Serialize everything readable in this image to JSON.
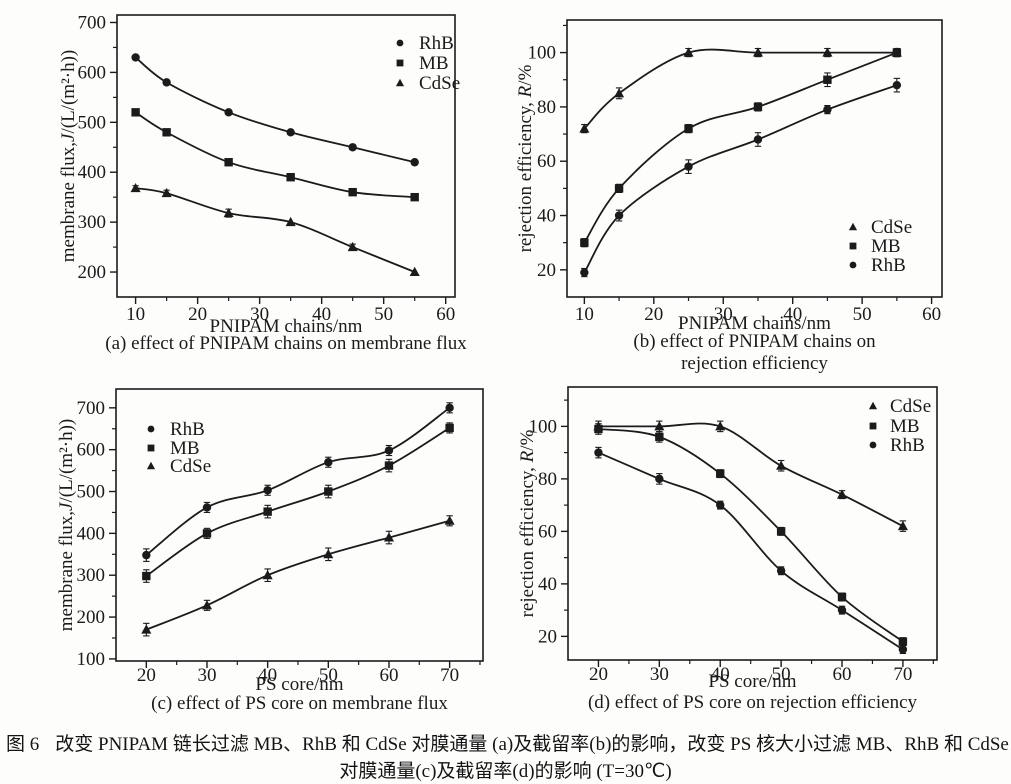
{
  "figure": {
    "caption_label": "图 6",
    "caption_line1": "改变 PNIPAM 链长过滤 MB、RhB 和 CdSe 对膜通量 (a)及截留率(b)的影响，改变 PS 核大小过滤 MB、RhB 和 CdSe",
    "caption_line2": "对膜通量(c)及截留率(d)的影响 (T=30℃)"
  },
  "colors": {
    "ink": "#1b1b1b",
    "background": "#fdfdfc"
  },
  "chart_data": [
    {
      "id": "a",
      "type": "line",
      "xlabel": "PNIPAM chains/nm",
      "ylabel": "membrane flux,J/(L/(m²·h))",
      "italic_var": "J",
      "caption_lines": [
        "(a) effect of PNIPAM chains on membrane flux"
      ],
      "x": [
        10,
        15,
        25,
        35,
        45,
        55
      ],
      "xlim": [
        7,
        61.5
      ],
      "ylim": [
        150,
        715
      ],
      "xticks": [
        10,
        20,
        30,
        40,
        50,
        60
      ],
      "yticks": [
        200,
        300,
        400,
        500,
        600,
        700
      ],
      "x_minor_step": 5,
      "y_minor_step": 50,
      "grid": false,
      "legend_position": "top-right",
      "series": [
        {
          "name": "RhB",
          "marker": "circle",
          "values": [
            630,
            580,
            520,
            480,
            450,
            420
          ],
          "err": [
            0,
            0,
            0,
            0,
            0,
            0
          ]
        },
        {
          "name": "MB",
          "marker": "square",
          "values": [
            520,
            480,
            420,
            390,
            360,
            350
          ],
          "err": [
            0,
            0,
            0,
            0,
            0,
            0
          ]
        },
        {
          "name": "CdSe",
          "marker": "triangle",
          "values": [
            368,
            358,
            318,
            300,
            250,
            200
          ],
          "err": [
            5,
            6,
            8,
            0,
            6,
            0
          ]
        }
      ]
    },
    {
      "id": "b",
      "type": "line",
      "xlabel": "PNIPAM chains/nm",
      "ylabel": "rejection efficiency, R/%",
      "italic_var": "R",
      "caption_lines": [
        "(b) effect of PNIPAM chains on",
        "rejection efficiency"
      ],
      "x": [
        10,
        15,
        25,
        35,
        45,
        55
      ],
      "xlim": [
        7.5,
        61.5
      ],
      "ylim": [
        10,
        112
      ],
      "xticks": [
        10,
        20,
        30,
        40,
        50,
        60
      ],
      "yticks": [
        20,
        40,
        60,
        80,
        100
      ],
      "x_minor_step": 5,
      "y_minor_step": 10,
      "grid": false,
      "legend_position": "right-middle",
      "series": [
        {
          "name": "CdSe",
          "marker": "triangle",
          "values": [
            72,
            85,
            100,
            100,
            100,
            100
          ],
          "err": [
            1.5,
            2,
            1.5,
            1.5,
            1.5,
            1.5
          ]
        },
        {
          "name": "MB",
          "marker": "square",
          "values": [
            30,
            50,
            72,
            80,
            90,
            100
          ],
          "err": [
            1.5,
            1.5,
            1.5,
            1.5,
            2.5,
            1.5
          ]
        },
        {
          "name": "RhB",
          "marker": "circle",
          "values": [
            19,
            40,
            58,
            68,
            79,
            88
          ],
          "err": [
            1.5,
            2,
            2.5,
            2.5,
            1.5,
            2.5
          ]
        }
      ]
    },
    {
      "id": "c",
      "type": "line",
      "xlabel": "PS core/nm",
      "ylabel": "membrane flux,J/(L/(m²·h))",
      "italic_var": "J",
      "caption_lines": [
        "(c) effect of PS core on membrane flux"
      ],
      "x": [
        20,
        30,
        40,
        50,
        60,
        70
      ],
      "xlim": [
        15,
        75.5
      ],
      "ylim": [
        95,
        745
      ],
      "xticks": [
        20,
        30,
        40,
        50,
        60,
        70
      ],
      "yticks": [
        100,
        200,
        300,
        400,
        500,
        600,
        700
      ],
      "x_minor_step": 5,
      "y_minor_step": 50,
      "grid": false,
      "legend_position": "top-left",
      "series": [
        {
          "name": "RhB",
          "marker": "circle",
          "values": [
            348,
            462,
            503,
            570,
            598,
            700
          ],
          "err": [
            15,
            12,
            12,
            12,
            12,
            12
          ]
        },
        {
          "name": "MB",
          "marker": "square",
          "values": [
            298,
            400,
            452,
            500,
            562,
            652
          ],
          "err": [
            15,
            12,
            15,
            15,
            15,
            12
          ]
        },
        {
          "name": "CdSe",
          "marker": "triangle",
          "values": [
            170,
            228,
            300,
            350,
            390,
            430
          ],
          "err": [
            15,
            12,
            15,
            15,
            15,
            12
          ]
        }
      ]
    },
    {
      "id": "d",
      "type": "line",
      "xlabel": "PS core/nm",
      "ylabel": "rejection efficiency, R/%",
      "italic_var": "R",
      "caption_lines": [
        "(d) effect of PS core on rejection efficiency"
      ],
      "x": [
        20,
        30,
        40,
        50,
        60,
        70
      ],
      "xlim": [
        15,
        75.6
      ],
      "ylim": [
        11,
        115
      ],
      "xticks": [
        20,
        30,
        40,
        50,
        60,
        70
      ],
      "yticks": [
        20,
        40,
        60,
        80,
        100
      ],
      "x_minor_step": 5,
      "y_minor_step": 10,
      "grid": false,
      "legend_position": "top-right",
      "series": [
        {
          "name": "CdSe",
          "marker": "triangle",
          "values": [
            100,
            100,
            100,
            85,
            74,
            62
          ],
          "err": [
            2,
            2,
            2,
            2,
            1.5,
            2
          ]
        },
        {
          "name": "MB",
          "marker": "square",
          "values": [
            99,
            96,
            82,
            60,
            35,
            18
          ],
          "err": [
            2,
            2,
            1.5,
            1.5,
            1.5,
            1.5
          ]
        },
        {
          "name": "RhB",
          "marker": "circle",
          "values": [
            90,
            80,
            70,
            45,
            30,
            15
          ],
          "err": [
            2,
            2,
            1.5,
            1.5,
            1.5,
            1.5
          ]
        }
      ]
    }
  ]
}
